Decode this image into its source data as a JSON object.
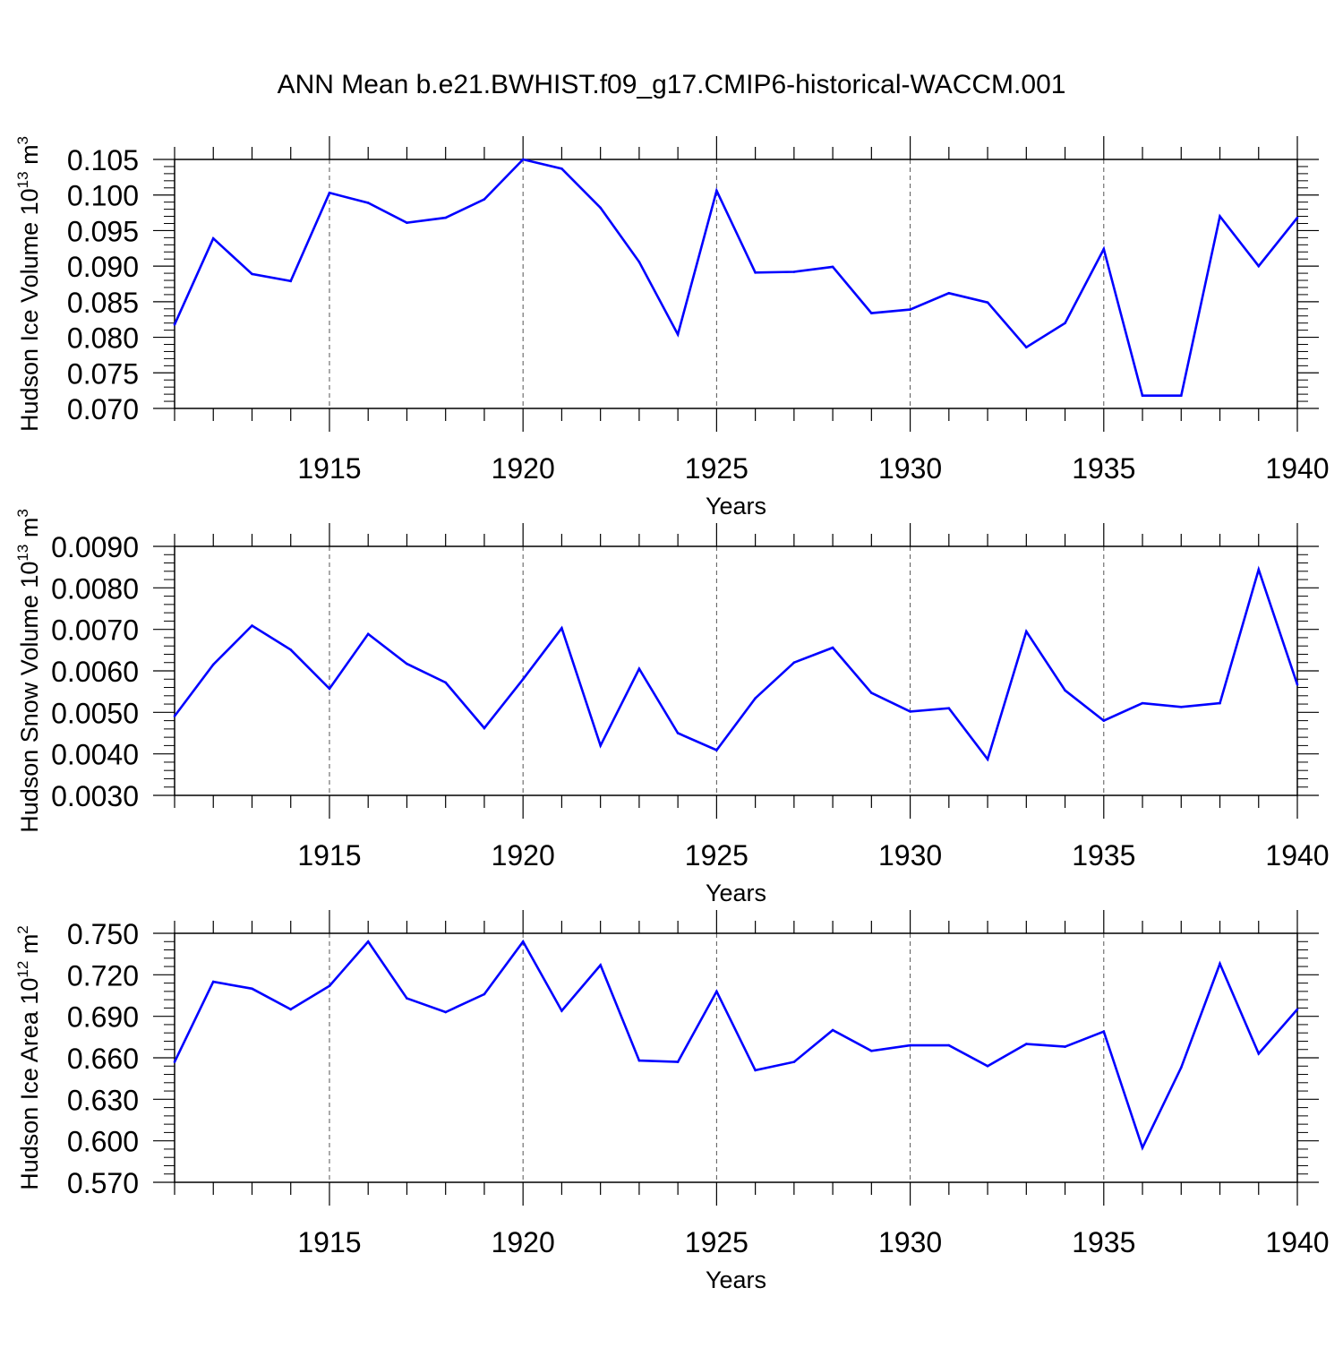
{
  "title": "ANN Mean b.e21.BWHIST.f09_g17.CMIP6-historical-WACCM.001",
  "line_color": "#0000ff",
  "chart_data": [
    {
      "type": "line",
      "xlabel": "Years",
      "ylabel_main": "Hudson Ice Volume 10",
      "ylabel_exp": "13",
      "ylabel_unit": " m",
      "ylabel_unit_exp": "3",
      "xlim": [
        1911,
        1940
      ],
      "ylim": [
        0.07,
        0.105
      ],
      "x_ticks": [
        "1915",
        "1920",
        "1925",
        "1930",
        "1935",
        "1940"
      ],
      "y_ticks": [
        "0.070",
        "0.075",
        "0.080",
        "0.085",
        "0.090",
        "0.095",
        "0.100",
        "0.105"
      ],
      "x": [
        1911,
        1912,
        1913,
        1914,
        1915,
        1916,
        1917,
        1918,
        1919,
        1920,
        1921,
        1922,
        1923,
        1924,
        1925,
        1926,
        1927,
        1928,
        1929,
        1930,
        1931,
        1932,
        1933,
        1934,
        1935,
        1936,
        1937,
        1938,
        1939,
        1940
      ],
      "values": [
        0.0818,
        0.0939,
        0.0889,
        0.0879,
        0.1003,
        0.0989,
        0.0961,
        0.0968,
        0.0994,
        0.105,
        0.1037,
        0.0982,
        0.0906,
        0.0804,
        0.1006,
        0.0891,
        0.0892,
        0.0899,
        0.0834,
        0.0839,
        0.0862,
        0.0849,
        0.0786,
        0.082,
        0.0924,
        0.0718,
        0.0718,
        0.097,
        0.09,
        0.0968
      ]
    },
    {
      "type": "line",
      "xlabel": "Years",
      "ylabel_main": "Hudson Snow Volume 10",
      "ylabel_exp": "13",
      "ylabel_unit": " m",
      "ylabel_unit_exp": "3",
      "xlim": [
        1911,
        1940
      ],
      "ylim": [
        0.003,
        0.009
      ],
      "x_ticks": [
        "1915",
        "1920",
        "1925",
        "1930",
        "1935",
        "1940"
      ],
      "y_ticks": [
        "0.0030",
        "0.0040",
        "0.0050",
        "0.0060",
        "0.0070",
        "0.0080",
        "0.0090"
      ],
      "x": [
        1911,
        1912,
        1913,
        1914,
        1915,
        1916,
        1917,
        1918,
        1919,
        1920,
        1921,
        1922,
        1923,
        1924,
        1925,
        1926,
        1927,
        1928,
        1929,
        1930,
        1931,
        1932,
        1933,
        1934,
        1935,
        1936,
        1937,
        1938,
        1939,
        1940
      ],
      "values": [
        0.00491,
        0.00615,
        0.00709,
        0.00651,
        0.00557,
        0.00689,
        0.00617,
        0.00572,
        0.00462,
        0.0058,
        0.00703,
        0.0042,
        0.00605,
        0.0045,
        0.00409,
        0.00534,
        0.0062,
        0.00656,
        0.00547,
        0.00502,
        0.0051,
        0.00387,
        0.00695,
        0.00553,
        0.0048,
        0.00522,
        0.00513,
        0.00522,
        0.00844,
        0.00567
      ]
    },
    {
      "type": "line",
      "xlabel": "Years",
      "ylabel_main": "Hudson Ice Area 10",
      "ylabel_exp": "12",
      "ylabel_unit": " m",
      "ylabel_unit_exp": "2",
      "xlim": [
        1911,
        1940
      ],
      "ylim": [
        0.57,
        0.75
      ],
      "x_ticks": [
        "1915",
        "1920",
        "1925",
        "1930",
        "1935",
        "1940"
      ],
      "y_ticks": [
        "0.570",
        "0.600",
        "0.630",
        "0.660",
        "0.690",
        "0.720",
        "0.750"
      ],
      "x": [
        1911,
        1912,
        1913,
        1914,
        1915,
        1916,
        1917,
        1918,
        1919,
        1920,
        1921,
        1922,
        1923,
        1924,
        1925,
        1926,
        1927,
        1928,
        1929,
        1930,
        1931,
        1932,
        1933,
        1934,
        1935,
        1936,
        1937,
        1938,
        1939,
        1940
      ],
      "values": [
        0.657,
        0.715,
        0.71,
        0.695,
        0.712,
        0.744,
        0.703,
        0.693,
        0.706,
        0.744,
        0.694,
        0.727,
        0.658,
        0.657,
        0.708,
        0.651,
        0.657,
        0.68,
        0.665,
        0.669,
        0.669,
        0.654,
        0.67,
        0.668,
        0.679,
        0.595,
        0.653,
        0.728,
        0.663,
        0.695
      ]
    }
  ]
}
